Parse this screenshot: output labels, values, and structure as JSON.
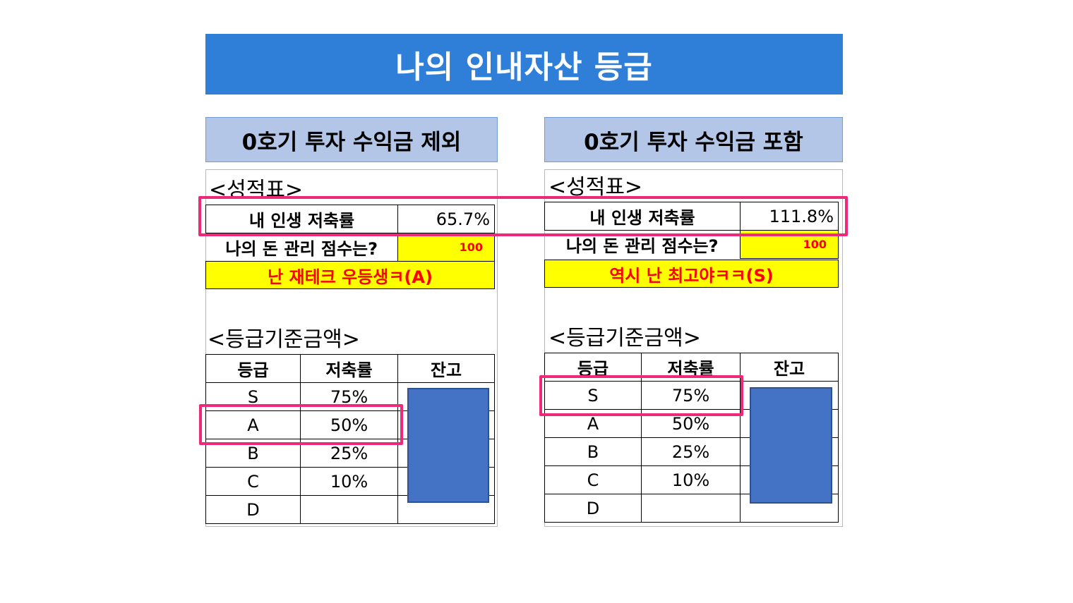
{
  "title": "나의 인내자산 등급",
  "left": {
    "header": "0호기 투자 수익금 제외",
    "report_label": "<성적표>",
    "savings_label": "내 인생 저축률",
    "savings_value": "65.7%",
    "score_label": "나의 돈 관리 점수는?",
    "score_value": "100",
    "message": "난 재테크 우등생ㅋ(A)",
    "criteria_label": "<등급기준금액>",
    "columns": [
      "등급",
      "저축률",
      "잔고"
    ],
    "rows": [
      {
        "grade": "S",
        "rate": "75%"
      },
      {
        "grade": "A",
        "rate": "50%"
      },
      {
        "grade": "B",
        "rate": "25%"
      },
      {
        "grade": "C",
        "rate": "10%"
      },
      {
        "grade": "D",
        "rate": ""
      }
    ]
  },
  "right": {
    "header": "0호기 투자 수익금 포함",
    "report_label": "<성적표>",
    "savings_label": "내 인생 저축률",
    "savings_value": "111.8%",
    "score_label": "나의 돈 관리 점수는?",
    "score_value": "100",
    "message": "역시 난 최고야ㅋㅋ(S)",
    "criteria_label": "<등급기준금액>",
    "columns": [
      "등급",
      "저축률",
      "잔고"
    ],
    "rows": [
      {
        "grade": "S",
        "rate": "75%"
      },
      {
        "grade": "A",
        "rate": "50%"
      },
      {
        "grade": "B",
        "rate": "25%"
      },
      {
        "grade": "C",
        "rate": "10%"
      },
      {
        "grade": "D",
        "rate": ""
      }
    ]
  },
  "colors": {
    "banner": "#2f7ed8",
    "header": "#b4c6e7",
    "highlight": "#f0287a",
    "yellow": "#ffff00",
    "red": "#ff0000",
    "box": "#4472c4"
  }
}
